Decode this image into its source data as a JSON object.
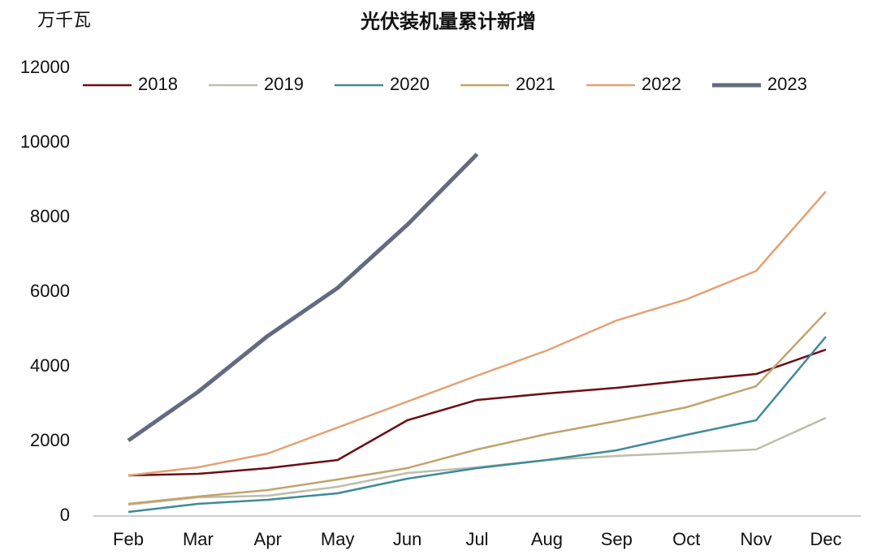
{
  "chart_data": {
    "type": "line",
    "title": "光伏装机量累计新增",
    "y_unit": "万千瓦",
    "categories": [
      "Feb",
      "Mar",
      "Apr",
      "May",
      "Jun",
      "Jul",
      "Aug",
      "Sep",
      "Oct",
      "Nov",
      "Dec"
    ],
    "series": [
      {
        "name": "2018",
        "color": "#6b0f12",
        "line_width": 2.5,
        "values": [
          1087,
          1130,
          1283,
          1500,
          2565,
          3109,
          3283,
          3435,
          3630,
          3804,
          4457
        ]
      },
      {
        "name": "2019",
        "color": "#bdbdaa",
        "line_width": 2.5,
        "values": [
          304,
          500,
          543,
          783,
          1152,
          1304,
          1500,
          1609,
          1696,
          1783,
          2630
        ]
      },
      {
        "name": "2020",
        "color": "#3e8a99",
        "line_width": 2.5,
        "values": [
          109,
          326,
          435,
          609,
          1000,
          1283,
          1500,
          1761,
          2174,
          2565,
          4804
        ]
      },
      {
        "name": "2021",
        "color": "#c2a36b",
        "line_width": 2.5,
        "values": [
          326,
          522,
          696,
          978,
          1283,
          1783,
          2196,
          2543,
          2913,
          3478,
          5457
        ]
      },
      {
        "name": "2022",
        "color": "#e3a272",
        "line_width": 2.5,
        "values": [
          1087,
          1304,
          1674,
          2370,
          3065,
          3761,
          4435,
          5239,
          5804,
          6565,
          8696
        ]
      },
      {
        "name": "2023",
        "color": "#646a80",
        "line_width": 5,
        "values": [
          2022,
          3326,
          4826,
          6109,
          7804,
          9696,
          null,
          null,
          null,
          null,
          null
        ]
      }
    ],
    "ylim": [
      0,
      12000
    ],
    "yticks": [
      0,
      2000,
      4000,
      6000,
      8000,
      10000,
      12000
    ],
    "grid": false,
    "legend": "top"
  }
}
